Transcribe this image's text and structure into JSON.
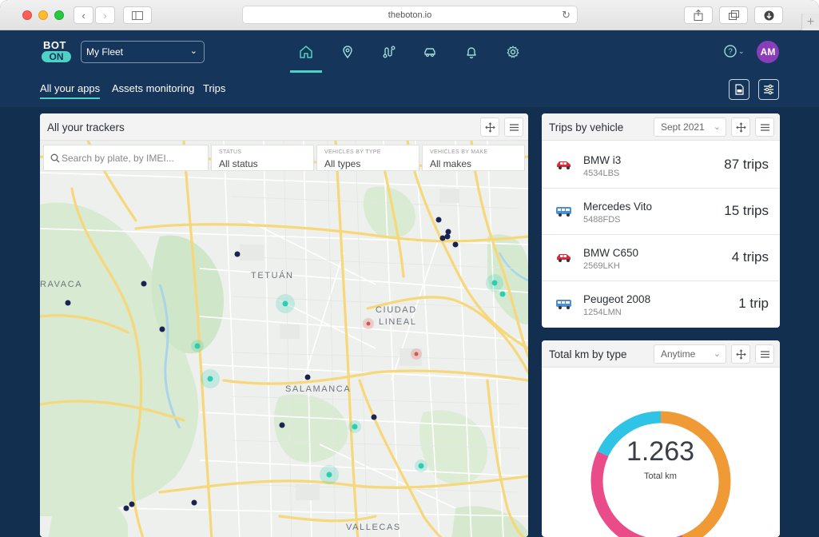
{
  "browser": {
    "url": "theboton.io"
  },
  "app": {
    "logo_top": "BOT",
    "logo_bottom": "ON",
    "fleet_selector": "My Fleet",
    "help_label": "?",
    "avatar_initials": "AM",
    "subtabs": [
      "All your apps",
      "Assets monitoring",
      "Trips"
    ],
    "nav_icons": [
      "home-icon",
      "location-pin-icon",
      "route-icon",
      "car-icon",
      "bell-icon",
      "gear-icon"
    ]
  },
  "trackers": {
    "title": "All your trackers",
    "search_placeholder": "Search by plate, by IMEI...",
    "filters": [
      {
        "label": "STATUS",
        "value": "All status"
      },
      {
        "label": "VEHICLES BY TYPE",
        "value": "All types"
      },
      {
        "label": "VEHICLES BY MAKE",
        "value": "All makes"
      }
    ],
    "map_labels": [
      "RAVACA",
      "TETUÁN",
      "CIUDAD",
      "LINEAL",
      "SALAMANCA",
      "VALLECAS"
    ]
  },
  "trips": {
    "title": "Trips by vehicle",
    "period": "Sept 2021",
    "rows": [
      {
        "name": "BMW i3",
        "plate": "4534LBS",
        "count": "87 trips",
        "icon": "car-icon"
      },
      {
        "name": "Mercedes Vito",
        "plate": "5488FDS",
        "count": "15 trips",
        "icon": "van-icon"
      },
      {
        "name": "BMW C650",
        "plate": "2569LKH",
        "count": "4 trips",
        "icon": "car-icon"
      },
      {
        "name": "Peugeot 2008",
        "plate": "1254LMN",
        "count": "1 trip",
        "icon": "van-icon"
      }
    ]
  },
  "km": {
    "title": "Total km by type",
    "period": "Anytime",
    "value": "1.263",
    "label": "Total km",
    "segments": [
      {
        "fraction": 0.44,
        "color": "#f09a36"
      },
      {
        "fraction": 0.38,
        "color": "#ea4c89"
      },
      {
        "fraction": 0.18,
        "color": "#2fc3e6"
      }
    ]
  },
  "colors": {
    "header_bg": "#15355a",
    "accent": "#4fd1c5",
    "tracker_dot": "#1b2450",
    "active_dot": "#2ccdb3",
    "alert_dot": "#d9534f"
  }
}
